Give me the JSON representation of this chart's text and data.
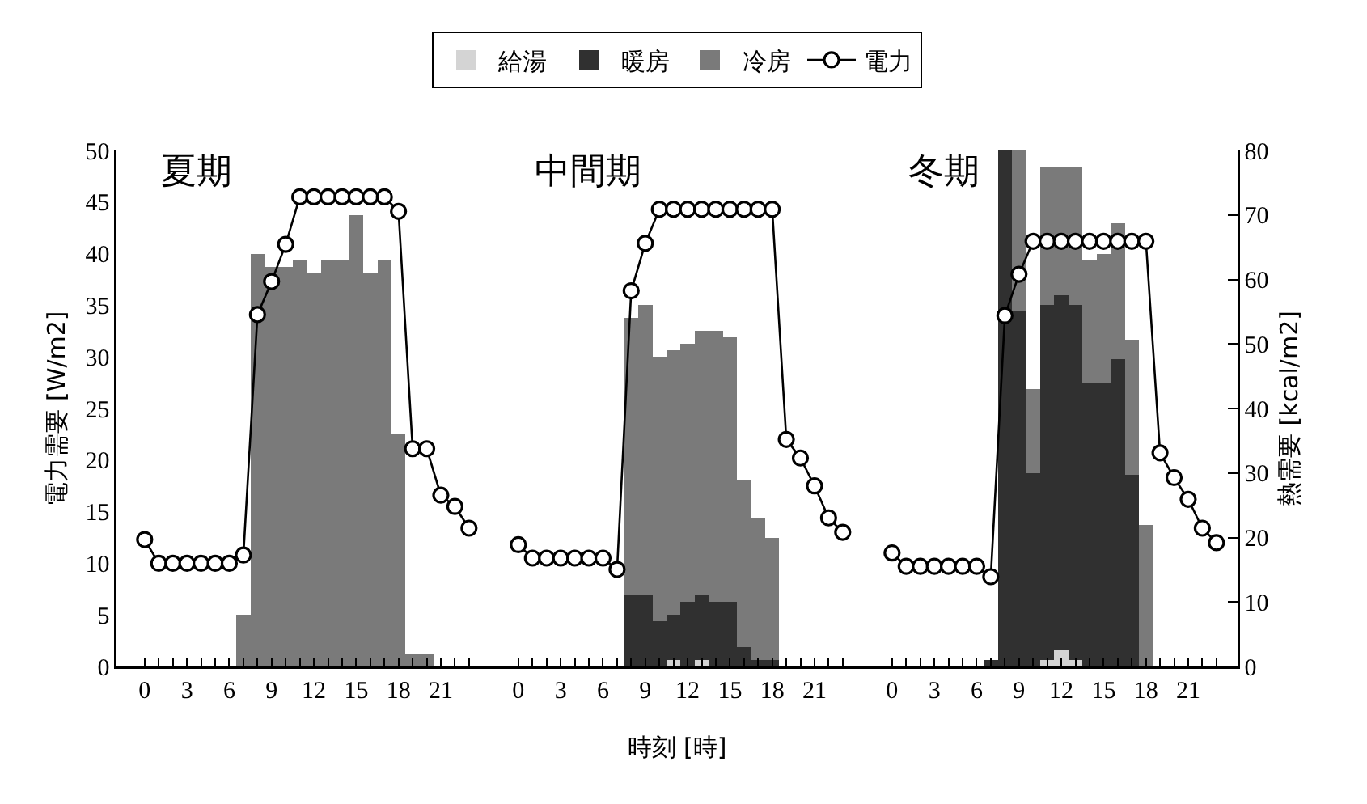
{
  "chart_data": [
    {
      "type": "bar",
      "title": "夏期",
      "ylabel": "電力需要 [W/m2]",
      "stacked": true,
      "x": [
        0,
        1,
        2,
        3,
        4,
        5,
        6,
        7,
        8,
        9,
        10,
        11,
        12,
        13,
        14,
        15,
        16,
        17,
        18,
        19,
        20,
        21,
        22,
        23
      ],
      "xlim": [
        -2,
        24.5
      ],
      "xticks": [
        0,
        {
          "value": 1,
          "label": null
        },
        {
          "value": 2,
          "label": null
        },
        3,
        {
          "value": 4,
          "label": null
        },
        {
          "value": 5,
          "label": null
        },
        6,
        {
          "value": 7,
          "label": null
        },
        {
          "value": 8,
          "label": null
        },
        9,
        {
          "value": 10,
          "label": null
        },
        {
          "value": 11,
          "label": null
        },
        12,
        {
          "value": 13,
          "label": null
        },
        {
          "value": 14,
          "label": null
        },
        15,
        {
          "value": 16,
          "label": null
        },
        {
          "value": 17,
          "label": null
        },
        18,
        {
          "value": 19,
          "label": null
        },
        {
          "value": 20,
          "label": null
        },
        21,
        {
          "value": 22,
          "label": null
        },
        {
          "value": 23,
          "label": null
        }
      ],
      "ylim": [
        0,
        50
      ],
      "yticks": [
        0,
        5,
        10,
        15,
        20,
        25,
        30,
        35,
        40,
        45,
        50
      ],
      "y2lim": [
        0,
        80
      ],
      "series": [
        {
          "type": "bar",
          "axis": "y2",
          "color": "#7a7a7a",
          "values": [
            null,
            null,
            null,
            null,
            null,
            null,
            null,
            8,
            64,
            62,
            62,
            63,
            61,
            63,
            63,
            70,
            61,
            63,
            36,
            2,
            2,
            null,
            null,
            null
          ]
        },
        {
          "type": "line",
          "color": "#000000",
          "marker": "circle",
          "values": [
            12.3,
            10,
            10,
            10,
            10,
            10,
            10,
            10.8,
            34.1,
            37.3,
            40.9,
            45.5,
            45.5,
            45.5,
            45.5,
            45.5,
            45.5,
            45.5,
            44.1,
            21.1,
            21.1,
            16.6,
            15.5,
            13.4
          ]
        }
      ]
    },
    {
      "type": "bar",
      "title": "中間期",
      "xlabel": "時刻 [時]",
      "stacked": true,
      "tick_labels": "x",
      "x": [
        0,
        1,
        2,
        3,
        4,
        5,
        6,
        7,
        8,
        9,
        10,
        11,
        12,
        13,
        14,
        15,
        16,
        17,
        18,
        19,
        20,
        21,
        22,
        23
      ],
      "xlim": [
        -2,
        24.5
      ],
      "xticks": [
        0,
        {
          "value": 1,
          "label": null
        },
        {
          "value": 2,
          "label": null
        },
        3,
        {
          "value": 4,
          "label": null
        },
        {
          "value": 5,
          "label": null
        },
        6,
        {
          "value": 7,
          "label": null
        },
        {
          "value": 8,
          "label": null
        },
        9,
        {
          "value": 10,
          "label": null
        },
        {
          "value": 11,
          "label": null
        },
        12,
        {
          "value": 13,
          "label": null
        },
        {
          "value": 14,
          "label": null
        },
        15,
        {
          "value": 16,
          "label": null
        },
        {
          "value": 17,
          "label": null
        },
        18,
        {
          "value": 19,
          "label": null
        },
        {
          "value": 20,
          "label": null
        },
        21,
        {
          "value": 22,
          "label": null
        },
        {
          "value": 23,
          "label": null
        }
      ],
      "ylim": [
        0,
        50
      ],
      "y2lim": [
        0,
        80
      ],
      "series": [
        {
          "type": "bar",
          "axis": "y2",
          "color": "#d4d4d4",
          "values": [
            null,
            null,
            null,
            null,
            null,
            null,
            null,
            null,
            null,
            null,
            null,
            1,
            null,
            1,
            null,
            null,
            null,
            null,
            null,
            null,
            null,
            null,
            null,
            null
          ]
        },
        {
          "type": "bar",
          "axis": "y2",
          "color": "#303030",
          "values": [
            null,
            null,
            null,
            null,
            null,
            null,
            null,
            null,
            11,
            11,
            7,
            7,
            10,
            10,
            10,
            10,
            3,
            1,
            1,
            null,
            null,
            null,
            null,
            null
          ]
        },
        {
          "type": "bar",
          "axis": "y2",
          "color": "#7a7a7a",
          "values": [
            null,
            null,
            null,
            null,
            null,
            null,
            null,
            null,
            43,
            45,
            41,
            41,
            40,
            41,
            42,
            41,
            26,
            22,
            19,
            null,
            null,
            null,
            null,
            null
          ]
        },
        {
          "type": "line",
          "color": "#000000",
          "marker": "circle",
          "values": [
            11.8,
            10.5,
            10.5,
            10.5,
            10.5,
            10.5,
            10.5,
            9.4,
            36.4,
            41,
            44.3,
            44.3,
            44.3,
            44.3,
            44.3,
            44.3,
            44.3,
            44.3,
            44.3,
            22,
            20.2,
            17.5,
            14.4,
            13
          ]
        }
      ]
    },
    {
      "type": "bar",
      "title": "冬期",
      "y2label": "熱需要 [kcal/m2]",
      "stacked": true,
      "legend": "top",
      "x": [
        0,
        1,
        2,
        3,
        4,
        5,
        6,
        7,
        8,
        9,
        10,
        11,
        12,
        13,
        14,
        15,
        16,
        17,
        18,
        19,
        20,
        21,
        22,
        23
      ],
      "xlim": [
        -2,
        24.5
      ],
      "xticks": [
        0,
        {
          "value": 1,
          "label": null
        },
        {
          "value": 2,
          "label": null
        },
        3,
        {
          "value": 4,
          "label": null
        },
        {
          "value": 5,
          "label": null
        },
        6,
        {
          "value": 7,
          "label": null
        },
        {
          "value": 8,
          "label": null
        },
        9,
        {
          "value": 10,
          "label": null
        },
        {
          "value": 11,
          "label": null
        },
        12,
        {
          "value": 13,
          "label": null
        },
        {
          "value": 14,
          "label": null
        },
        15,
        {
          "value": 16,
          "label": null
        },
        {
          "value": 17,
          "label": null
        },
        18,
        {
          "value": 19,
          "label": null
        },
        {
          "value": 20,
          "label": null
        },
        21,
        {
          "value": 22,
          "label": null
        },
        {
          "value": 23,
          "label": null
        }
      ],
      "ylim": [
        0,
        50
      ],
      "y2lim": [
        0,
        80
      ],
      "y2ticks": [
        0,
        10,
        20,
        30,
        40,
        50,
        60,
        70,
        80
      ],
      "series": [
        {
          "type": "bar",
          "axis": "y2",
          "name": "給湯",
          "color": "#d4d4d4",
          "values": [
            null,
            null,
            null,
            null,
            null,
            null,
            null,
            null,
            null,
            null,
            null,
            1,
            2.5,
            1,
            null,
            null,
            null,
            null,
            null,
            null,
            null,
            null,
            null,
            null
          ]
        },
        {
          "type": "bar",
          "axis": "y2",
          "name": "暖房",
          "color": "#303030",
          "values": [
            null,
            null,
            null,
            null,
            null,
            null,
            null,
            1,
            80,
            55,
            30,
            55,
            55,
            55,
            44,
            44,
            47.7,
            29.7,
            null,
            null,
            null,
            null,
            null,
            null
          ]
        },
        {
          "type": "bar",
          "axis": "y2",
          "name": "冷房",
          "color": "#7a7a7a",
          "values": [
            null,
            null,
            null,
            null,
            null,
            null,
            null,
            null,
            null,
            25,
            13,
            21.5,
            20,
            21.5,
            19,
            20,
            21,
            21,
            22,
            null,
            null,
            null,
            null,
            null
          ]
        },
        {
          "type": "line",
          "name": "電力",
          "color": "#000000",
          "marker": "circle",
          "values": [
            11,
            9.7,
            9.7,
            9.7,
            9.7,
            9.7,
            9.7,
            8.7,
            34,
            38,
            41.2,
            41.2,
            41.2,
            41.2,
            41.2,
            41.2,
            41.2,
            41.2,
            41.2,
            20.7,
            18.3,
            16.2,
            13.4,
            12
          ]
        }
      ]
    }
  ]
}
